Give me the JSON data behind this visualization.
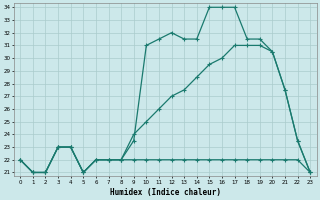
{
  "xlabel": "Humidex (Indice chaleur)",
  "line_color": "#1a7a6e",
  "bg_color": "#cce8ea",
  "grid_color": "#aacccc",
  "ylim": [
    21,
    34
  ],
  "xlim": [
    -0.5,
    23.5
  ],
  "yticks": [
    21,
    22,
    23,
    24,
    25,
    26,
    27,
    28,
    29,
    30,
    31,
    32,
    33,
    34
  ],
  "xticks": [
    0,
    1,
    2,
    3,
    4,
    5,
    6,
    7,
    8,
    9,
    10,
    11,
    12,
    13,
    14,
    15,
    16,
    17,
    18,
    19,
    20,
    21,
    22,
    23
  ],
  "y_top": [
    22,
    21,
    21,
    23,
    23,
    21,
    22,
    22,
    22,
    23.5,
    31,
    31.5,
    32,
    31.5,
    31.5,
    34,
    34,
    34,
    31.5,
    31.5,
    30.5,
    27.5,
    23.5,
    21
  ],
  "y_middle": [
    22,
    21,
    21,
    23,
    23,
    21,
    22,
    22,
    22,
    24,
    25,
    26,
    27,
    27.5,
    28.5,
    29.5,
    30,
    31,
    31,
    31,
    30.5,
    27.5,
    23.5,
    21
  ],
  "y_bottom": [
    22,
    21,
    21,
    23,
    23,
    21,
    22,
    22,
    22,
    22,
    22,
    22,
    22,
    22,
    22,
    22,
    22,
    22,
    22,
    22,
    22,
    22,
    22,
    21
  ]
}
